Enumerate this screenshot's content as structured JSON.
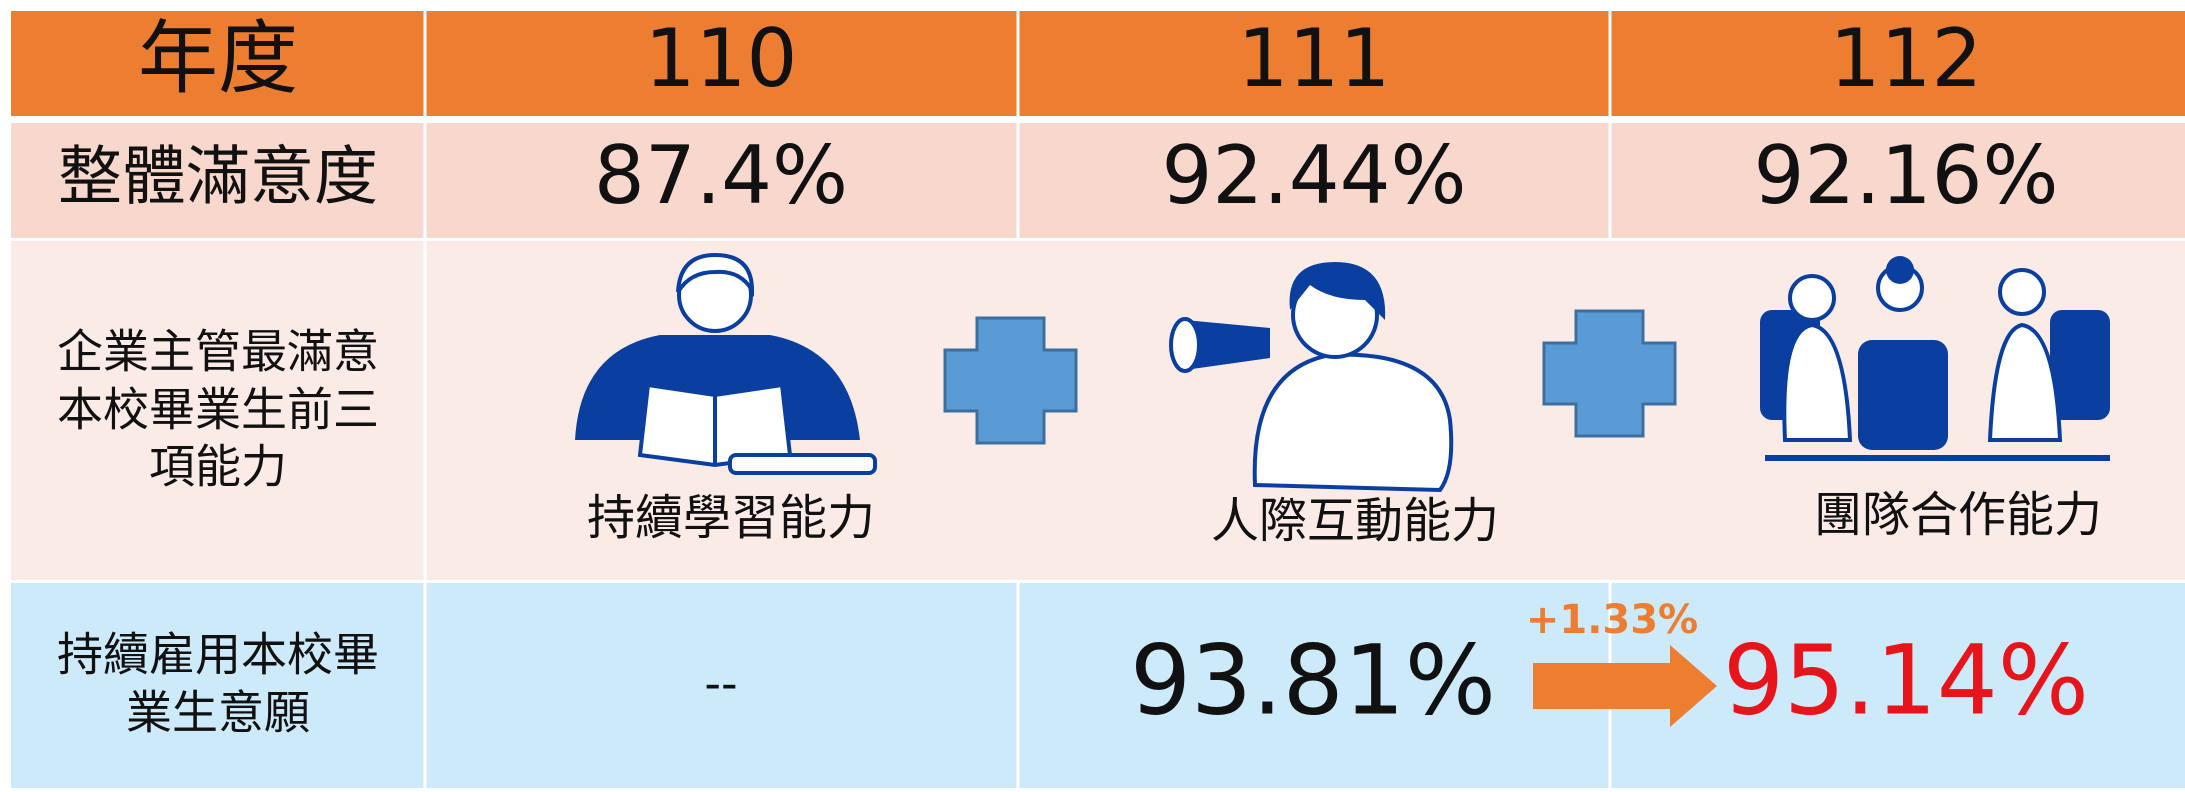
{
  "table": {
    "header": [
      "年度",
      "110",
      "111",
      "112"
    ],
    "satisfaction": {
      "label": "整體滿意度",
      "values": [
        "87.4%",
        "92.44%",
        "92.16%"
      ]
    },
    "abilities": {
      "label": [
        "企業主管最滿意",
        "本校畢業生前三",
        "項能力"
      ],
      "items": [
        "持續學習能力",
        "人際互動能力",
        "團隊合作能力"
      ]
    },
    "employment": {
      "label": [
        "持續雇用本校畢",
        "業生意願"
      ],
      "values": [
        "--",
        "93.81%",
        "95.14%"
      ],
      "change": "+1.33%"
    }
  }
}
